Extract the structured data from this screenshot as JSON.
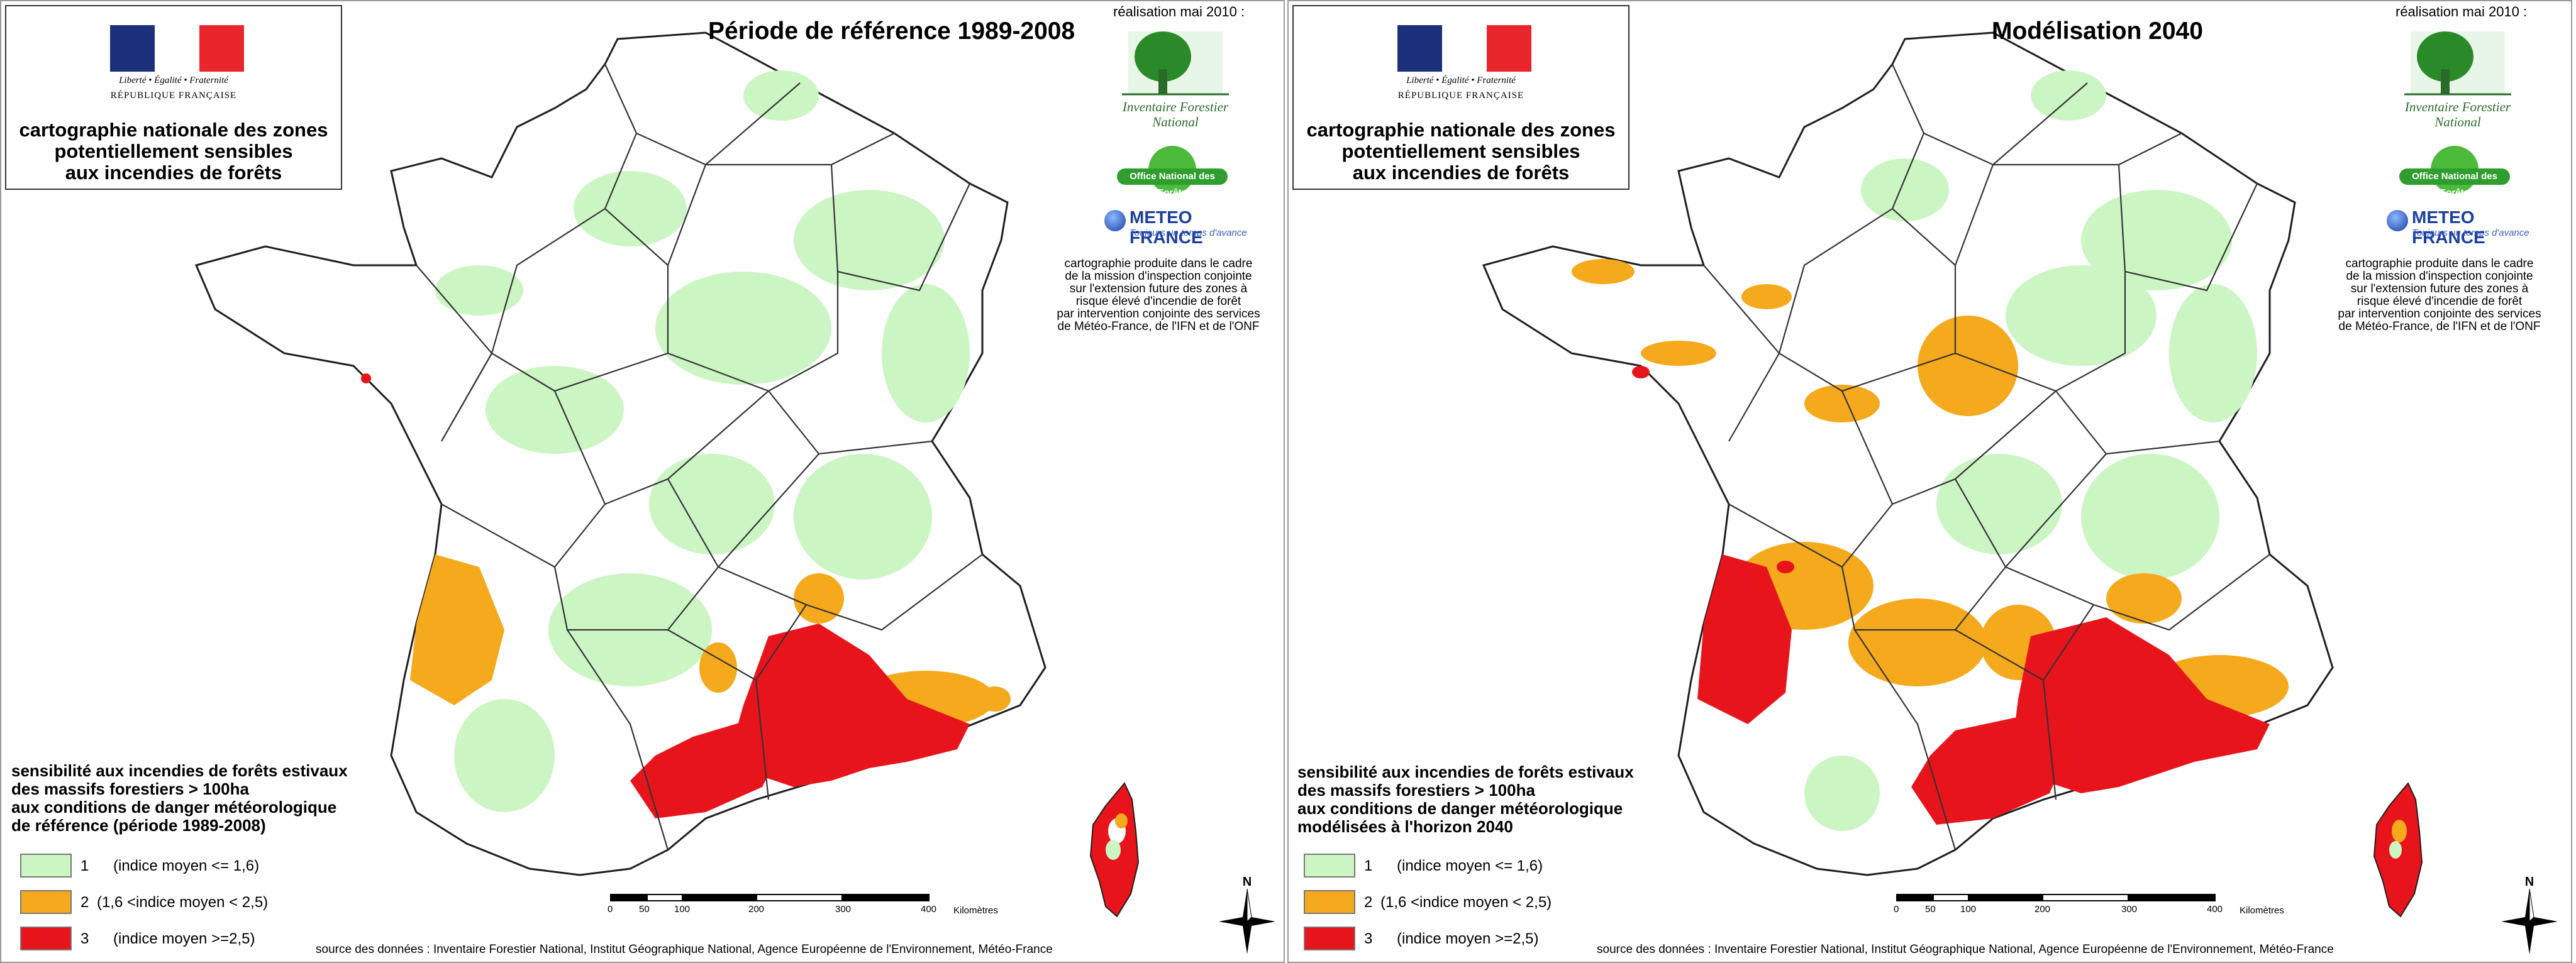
{
  "header": {
    "motto": "Liberté • Égalité • Fraternité",
    "republique": "RÉPUBLIQUE FRANÇAISE",
    "title_lines": [
      "cartographie nationale des zones",
      "potentiellement sensibles",
      "aux incendies de forêts"
    ]
  },
  "realisation": "réalisation mai 2010 :",
  "logos": {
    "ifn_lines": [
      "Inventaire Forestier",
      "National"
    ],
    "onf": "Office National des Forêts",
    "meteo_name": "METEO FRANCE",
    "meteo_tagline": "Toujours un temps d'avance"
  },
  "mission_text_lines": [
    "cartographie produite dans le cadre",
    "de la mission d'inspection conjointe",
    "sur l'extension future des zones à",
    "risque élevé d'incendie de forêt",
    "par intervention conjointe des services",
    "de Météo-France, de l'IFN et de l'ONF"
  ],
  "panels": [
    {
      "title": "Période de référence 1989-2008",
      "legend_title_lines": [
        "sensibilité aux incendies de forêts estivaux",
        "des massifs forestiers > 100ha",
        "aux conditions de danger météorologique",
        "de référence (période 1989-2008)"
      ]
    },
    {
      "title": "Modélisation 2040",
      "legend_title_lines": [
        "sensibilité aux incendies de forêts estivaux",
        "des massifs forestiers > 100ha",
        "aux conditions de danger météorologique",
        "modélisées à l'horizon 2040"
      ]
    }
  ],
  "legend": [
    {
      "class": "1",
      "condition": "(indice moyen <= 1,6)",
      "color": "#ccf5c4"
    },
    {
      "class": "2",
      "condition": "(1,6 <indice moyen < 2,5)",
      "color": "#f5a91c"
    },
    {
      "class": "3",
      "condition": "(indice moyen >=2,5)",
      "color": "#e8141c"
    }
  ],
  "scale": {
    "labels": [
      "0",
      "50",
      "100",
      "200",
      "300",
      "400"
    ],
    "unit": "Kilomètres"
  },
  "north_label": "N",
  "source": "source des données : Inventaire Forestier National, Institut Géographique National,  Agence Européenne de l'Environnement, Météo-France",
  "colors": {
    "forest_low": "#ccf5c4",
    "forest_mid": "#f5a91c",
    "forest_high": "#e8141c",
    "boundary": "#1e1e1e",
    "flag_blue": "#1b2f7a",
    "flag_red": "#e8262b"
  }
}
